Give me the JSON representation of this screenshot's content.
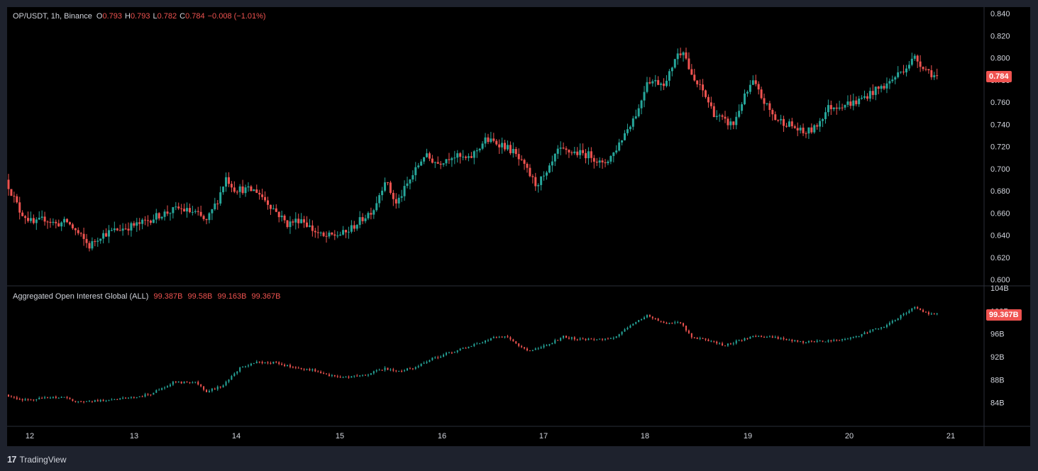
{
  "header": {
    "symbol": "OP/USDT, 1h, Binance",
    "o_label": "O",
    "o": "0.793",
    "h_label": "H",
    "h": "0.793",
    "l_label": "L",
    "l": "0.782",
    "c_label": "C",
    "c": "0.784",
    "change": "−0.008 (−1.01%)"
  },
  "indicator": {
    "name": "Aggregated Open Interest Global (ALL)",
    "v1": "99.387B",
    "v2": "99.58B",
    "v3": "99.163B",
    "v4": "99.367B"
  },
  "price_badge": "0.784",
  "oi_badge": "99.367B",
  "brand": {
    "logo": "17",
    "name": "TradingView"
  },
  "colors": {
    "up": "#26a69a",
    "down": "#ef5350",
    "bg": "#000000",
    "frame": "#1e222d",
    "grid": "#2a2e39"
  },
  "chart_data": [
    {
      "type": "candlestick",
      "title": "OP/USDT, 1h, Binance",
      "ylim": [
        0.6,
        0.84
      ],
      "yticks": [
        "0.600",
        "0.620",
        "0.640",
        "0.660",
        "0.680",
        "0.700",
        "0.720",
        "0.740",
        "0.760",
        "0.780",
        "0.800",
        "0.820",
        "0.840"
      ],
      "x_ticks": [
        "12",
        "13",
        "14",
        "15",
        "16",
        "17",
        "18",
        "19",
        "20",
        "21"
      ],
      "anchors": [
        [
          0,
          0.69
        ],
        [
          5,
          0.662
        ],
        [
          10,
          0.65
        ],
        [
          14,
          0.655
        ],
        [
          18,
          0.65
        ],
        [
          22,
          0.652
        ],
        [
          25,
          0.644
        ],
        [
          30,
          0.63
        ],
        [
          34,
          0.64
        ],
        [
          40,
          0.645
        ],
        [
          48,
          0.65
        ],
        [
          55,
          0.658
        ],
        [
          62,
          0.664
        ],
        [
          68,
          0.66
        ],
        [
          72,
          0.652
        ],
        [
          76,
          0.672
        ],
        [
          79,
          0.692
        ],
        [
          82,
          0.682
        ],
        [
          90,
          0.68
        ],
        [
          96,
          0.664
        ],
        [
          101,
          0.65
        ],
        [
          106,
          0.655
        ],
        [
          110,
          0.645
        ],
        [
          114,
          0.638
        ],
        [
          122,
          0.642
        ],
        [
          128,
          0.655
        ],
        [
          132,
          0.664
        ],
        [
          136,
          0.69
        ],
        [
          140,
          0.668
        ],
        [
          145,
          0.69
        ],
        [
          150,
          0.712
        ],
        [
          155,
          0.705
        ],
        [
          160,
          0.712
        ],
        [
          166,
          0.708
        ],
        [
          172,
          0.726
        ],
        [
          178,
          0.722
        ],
        [
          182,
          0.715
        ],
        [
          187,
          0.698
        ],
        [
          190,
          0.686
        ],
        [
          194,
          0.694
        ],
        [
          198,
          0.716
        ],
        [
          203,
          0.715
        ],
        [
          210,
          0.712
        ],
        [
          214,
          0.703
        ],
        [
          218,
          0.714
        ],
        [
          222,
          0.732
        ],
        [
          227,
          0.754
        ],
        [
          230,
          0.78
        ],
        [
          234,
          0.778
        ],
        [
          237,
          0.778
        ],
        [
          240,
          0.8
        ],
        [
          243,
          0.808
        ],
        [
          246,
          0.782
        ],
        [
          250,
          0.77
        ],
        [
          254,
          0.75
        ],
        [
          258,
          0.742
        ],
        [
          261,
          0.74
        ],
        [
          264,
          0.76
        ],
        [
          268,
          0.778
        ],
        [
          272,
          0.76
        ],
        [
          276,
          0.745
        ],
        [
          281,
          0.74
        ],
        [
          286,
          0.732
        ],
        [
          290,
          0.736
        ],
        [
          295,
          0.755
        ],
        [
          300,
          0.758
        ],
        [
          305,
          0.76
        ],
        [
          310,
          0.768
        ],
        [
          316,
          0.776
        ],
        [
          322,
          0.79
        ],
        [
          326,
          0.8
        ],
        [
          330,
          0.79
        ],
        [
          333,
          0.784
        ]
      ],
      "last_close": 0.784
    },
    {
      "type": "candlestick",
      "title": "Aggregated Open Interest Global (ALL)",
      "ylim": [
        81,
        104
      ],
      "yticks": [
        "84B",
        "88B",
        "92B",
        "96B",
        "100B",
        "104B"
      ],
      "anchors": [
        [
          0,
          85.4
        ],
        [
          6,
          84.4
        ],
        [
          14,
          84.8
        ],
        [
          20,
          85.0
        ],
        [
          26,
          84.1
        ],
        [
          34,
          84.4
        ],
        [
          44,
          84.8
        ],
        [
          52,
          85.5
        ],
        [
          60,
          87.5
        ],
        [
          68,
          87.6
        ],
        [
          72,
          86.0
        ],
        [
          78,
          87.0
        ],
        [
          84,
          90.0
        ],
        [
          90,
          91.0
        ],
        [
          96,
          91.0
        ],
        [
          100,
          90.5
        ],
        [
          106,
          90.0
        ],
        [
          112,
          89.5
        ],
        [
          118,
          88.5
        ],
        [
          124,
          88.5
        ],
        [
          130,
          89.0
        ],
        [
          136,
          90.0
        ],
        [
          140,
          89.5
        ],
        [
          146,
          90.0
        ],
        [
          152,
          91.5
        ],
        [
          158,
          92.5
        ],
        [
          164,
          93.5
        ],
        [
          170,
          94.5
        ],
        [
          176,
          95.5
        ],
        [
          180,
          95.5
        ],
        [
          184,
          94.0
        ],
        [
          188,
          93.0
        ],
        [
          194,
          94.0
        ],
        [
          200,
          95.5
        ],
        [
          206,
          95.0
        ],
        [
          212,
          95.0
        ],
        [
          218,
          95.2
        ],
        [
          224,
          97.5
        ],
        [
          230,
          99.3
        ],
        [
          236,
          97.8
        ],
        [
          242,
          98.0
        ],
        [
          246,
          95.5
        ],
        [
          252,
          94.8
        ],
        [
          258,
          94.0
        ],
        [
          264,
          95.0
        ],
        [
          268,
          95.5
        ],
        [
          274,
          95.5
        ],
        [
          280,
          95.0
        ],
        [
          286,
          94.6
        ],
        [
          292,
          94.8
        ],
        [
          298,
          94.8
        ],
        [
          304,
          95.3
        ],
        [
          310,
          96.5
        ],
        [
          316,
          97.5
        ],
        [
          322,
          99.5
        ],
        [
          326,
          100.7
        ],
        [
          330,
          99.6
        ],
        [
          333,
          99.367
        ]
      ]
    }
  ]
}
